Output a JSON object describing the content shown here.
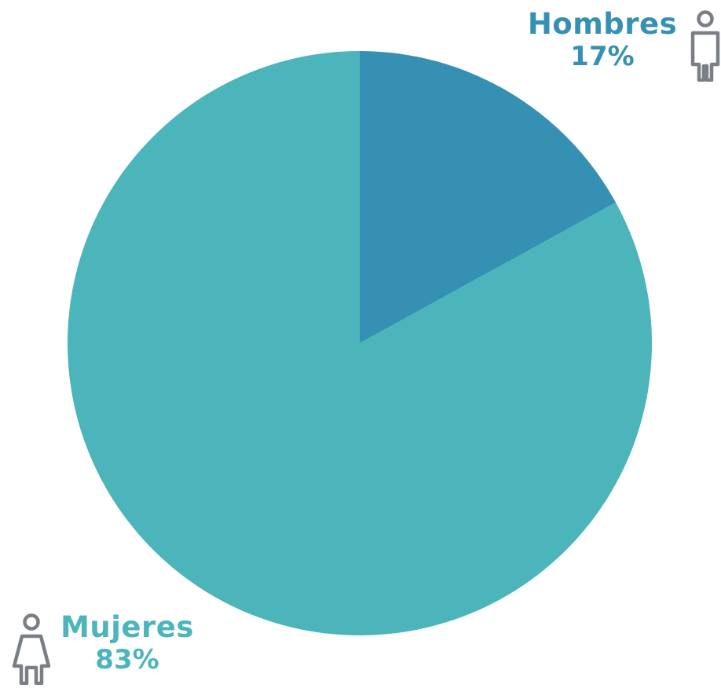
{
  "chart_data": {
    "type": "pie",
    "slices": [
      {
        "label": "Hombres",
        "value": 17,
        "display": "17%",
        "color": "#3590b3",
        "icon": "male-person-icon"
      },
      {
        "label": "Mujeres",
        "value": 83,
        "display": "83%",
        "color": "#4bb5bb",
        "icon": "female-person-icon"
      }
    ],
    "start_angle": "12 o'clock",
    "direction": "clockwise",
    "legend": "none",
    "labels_placement": "outside corners"
  }
}
